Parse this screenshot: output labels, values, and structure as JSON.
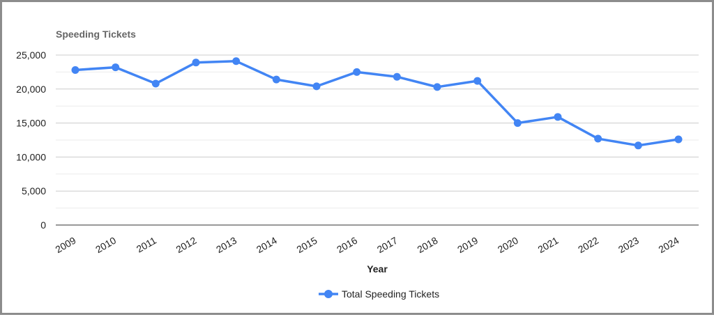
{
  "chart_data": {
    "type": "line",
    "title": "Speeding Tickets",
    "xlabel": "Year",
    "ylabel": "",
    "categories": [
      "2009",
      "2010",
      "2011",
      "2012",
      "2013",
      "2014",
      "2015",
      "2016",
      "2017",
      "2018",
      "2019",
      "2020",
      "2021",
      "2022",
      "2023",
      "2024"
    ],
    "series": [
      {
        "name": "Total Speeding Tickets",
        "values": [
          22800,
          23200,
          20800,
          23900,
          24100,
          21400,
          20400,
          22500,
          21800,
          20300,
          21200,
          15000,
          15900,
          12700,
          11700,
          12600
        ]
      }
    ],
    "ylim": [
      0,
      25000
    ],
    "y_ticks": [
      "0",
      "5,000",
      "10,000",
      "15,000",
      "20,000",
      "25,000"
    ],
    "grid": true,
    "legend_position": "bottom",
    "colors": {
      "series": "#4285f4",
      "grid": "#cccccc",
      "minor_grid": "#ebebeb"
    }
  }
}
